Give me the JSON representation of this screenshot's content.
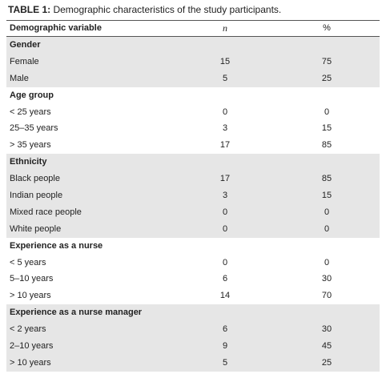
{
  "title": {
    "label": "TABLE 1:",
    "text": "Demographic characteristics of the study participants."
  },
  "table": {
    "header": [
      "Demographic variable",
      "n",
      "%"
    ],
    "sections": [
      {
        "heading": "Gender",
        "rows": [
          [
            "Female",
            15,
            75
          ],
          [
            "Male",
            5,
            25
          ]
        ]
      },
      {
        "heading": "Age group",
        "rows": [
          [
            "< 25 years",
            0,
            0
          ],
          [
            "25–35 years",
            3,
            15
          ],
          [
            "> 35 years",
            17,
            85
          ]
        ]
      },
      {
        "heading": "Ethnicity",
        "rows": [
          [
            "Black people",
            17,
            85
          ],
          [
            "Indian people",
            3,
            15
          ],
          [
            "Mixed race people",
            0,
            0
          ],
          [
            "White people",
            0,
            0
          ]
        ]
      },
      {
        "heading": "Experience as a nurse",
        "rows": [
          [
            "< 5 years",
            0,
            0
          ],
          [
            "5–10 years",
            6,
            30
          ],
          [
            "> 10 years",
            14,
            70
          ]
        ]
      },
      {
        "heading": "Experience as a nurse manager",
        "rows": [
          [
            "< 2 years",
            6,
            30
          ],
          [
            "2–10 years",
            9,
            45
          ],
          [
            "> 10 years",
            5,
            25
          ]
        ]
      }
    ]
  }
}
